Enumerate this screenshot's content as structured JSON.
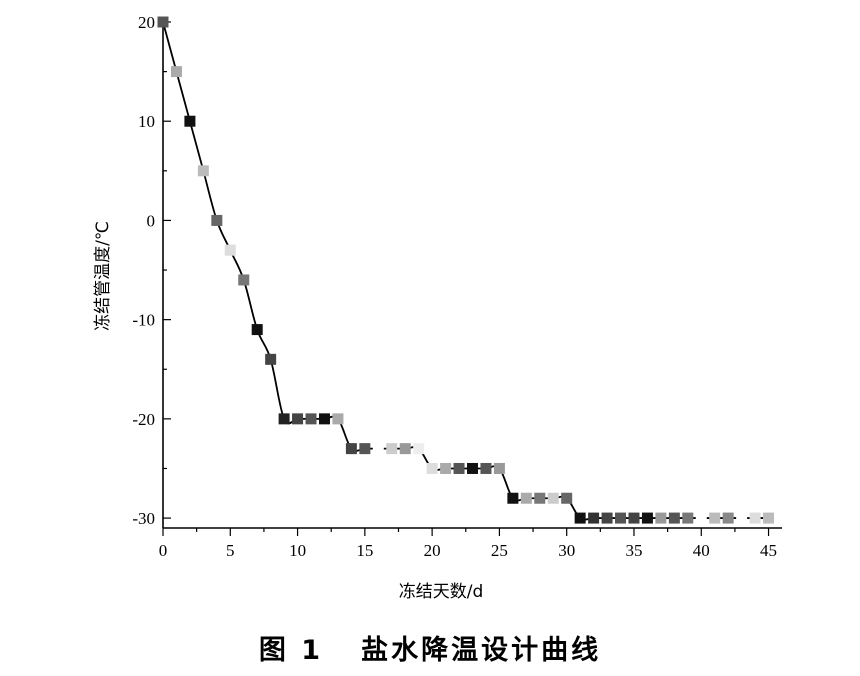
{
  "chart_data": {
    "type": "line",
    "xlabel": "冻结天数/d",
    "ylabel": "冻结管温度/℃",
    "xlim": [
      0,
      46
    ],
    "ylim": [
      -31,
      20
    ],
    "xticks": [
      0,
      5,
      10,
      15,
      20,
      25,
      30,
      35,
      40,
      45
    ],
    "yticks": [
      20,
      10,
      0,
      -10,
      -20,
      -30
    ],
    "legend": "none",
    "grid": false,
    "series": [
      {
        "x": [
          0,
          1,
          2,
          3,
          4,
          5,
          6,
          7,
          8,
          9,
          10,
          11,
          12,
          13,
          14,
          15,
          16,
          17,
          18,
          19,
          20,
          21,
          22,
          23,
          24,
          25,
          26,
          27,
          28,
          29,
          30,
          31,
          32,
          33,
          34,
          35,
          36,
          37,
          38,
          39,
          40,
          41,
          42,
          43,
          44,
          45
        ],
        "y": [
          20,
          15,
          10,
          5,
          0,
          -3,
          -6,
          -11,
          -14,
          -20,
          -20,
          -20,
          -20,
          -20,
          -23,
          -23,
          -23,
          -23,
          -23,
          -23,
          -25,
          -25,
          -25,
          -25,
          -25,
          -25,
          -28,
          -28,
          -28,
          -28,
          -28,
          -30,
          -30,
          -30,
          -30,
          -30,
          -30,
          -30,
          -30,
          -30,
          -30,
          -30,
          -30,
          -30,
          -30,
          -30
        ],
        "marker_colors": [
          "#555555",
          "#aaaaaa",
          "#111111",
          "#bbbbbb",
          "#666666",
          "#dddddd",
          "#777777",
          "#111111",
          "#444444",
          "#222222",
          "#444444",
          "#555555",
          "#111111",
          "#aaaaaa",
          "#444444",
          "#555555",
          "#ffffff",
          "#cccccc",
          "#999999",
          "#eeeeee",
          "#dddddd",
          "#aaaaaa",
          "#555555",
          "#111111",
          "#555555",
          "#999999",
          "#111111",
          "#aaaaaa",
          "#777777",
          "#cccccc",
          "#666666",
          "#111111",
          "#333333",
          "#444444",
          "#555555",
          "#444444",
          "#111111",
          "#999999",
          "#555555",
          "#777777",
          "#ffffff",
          "#bbbbbb",
          "#888888",
          "#ffffff",
          "#dddddd",
          "#bbbbbb"
        ]
      }
    ]
  },
  "caption": {
    "number": "图 1",
    "title": "盐水降温设计曲线"
  }
}
